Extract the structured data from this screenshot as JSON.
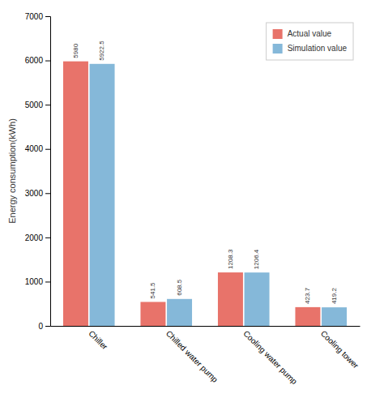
{
  "chart_data": {
    "type": "bar",
    "categories": [
      "Chiller",
      "Chilled water pump",
      "Cooling water pump",
      "Cooling tower"
    ],
    "series": [
      {
        "name": "Actual value",
        "color": "#E8736A",
        "values": [
          5980,
          541.5,
          1208.3,
          423.7
        ]
      },
      {
        "name": "Simulation value",
        "color": "#85B8D9",
        "values": [
          5922.5,
          608.5,
          1206.4,
          419.2
        ]
      }
    ],
    "y_label": "Energy consumption(kWh)",
    "ylim": [
      0,
      7000
    ],
    "yticks": [
      0,
      1000,
      2000,
      3000,
      4000,
      5000,
      6000,
      7000
    ],
    "grid": false,
    "legend": "upper right",
    "data_labels": true
  }
}
